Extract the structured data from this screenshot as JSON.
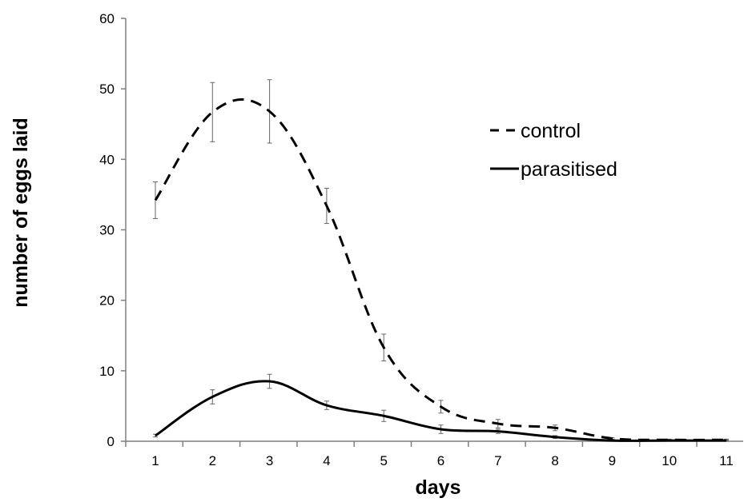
{
  "chart_data": {
    "type": "line",
    "title": "",
    "xlabel": "days",
    "ylabel": "number of eggs laid",
    "x": [
      1,
      2,
      3,
      4,
      5,
      6,
      7,
      8,
      9,
      10,
      11
    ],
    "x_tick_labels": [
      "1",
      "2",
      "3",
      "4",
      "5",
      "6",
      "7",
      "8",
      "9",
      "10",
      "11"
    ],
    "ylim": [
      0,
      60
    ],
    "y_ticks": [
      0,
      10,
      20,
      30,
      40,
      50,
      60
    ],
    "y_tick_labels": [
      "0",
      "10",
      "20",
      "30",
      "40",
      "50",
      "60"
    ],
    "grid": false,
    "legend_position": "top-right",
    "series": [
      {
        "name": "control",
        "line_style": "dashed",
        "color": "#000000",
        "values": [
          34.2,
          46.7,
          46.8,
          33.4,
          13.3,
          4.9,
          2.5,
          1.9,
          0.4,
          0.2,
          0.2
        ],
        "error": [
          2.6,
          4.2,
          4.5,
          2.5,
          1.9,
          0.9,
          0.6,
          0.4,
          0.1,
          0.1,
          0.1
        ]
      },
      {
        "name": "parasitised",
        "line_style": "solid",
        "color": "#000000",
        "values": [
          0.8,
          6.3,
          8.5,
          5.1,
          3.6,
          1.7,
          1.4,
          0.6,
          0.1,
          0.1,
          0.1
        ],
        "error": [
          0.2,
          1.0,
          1.0,
          0.6,
          0.8,
          0.6,
          0.3,
          0.2,
          0.1,
          0.1,
          0.1
        ]
      }
    ]
  }
}
